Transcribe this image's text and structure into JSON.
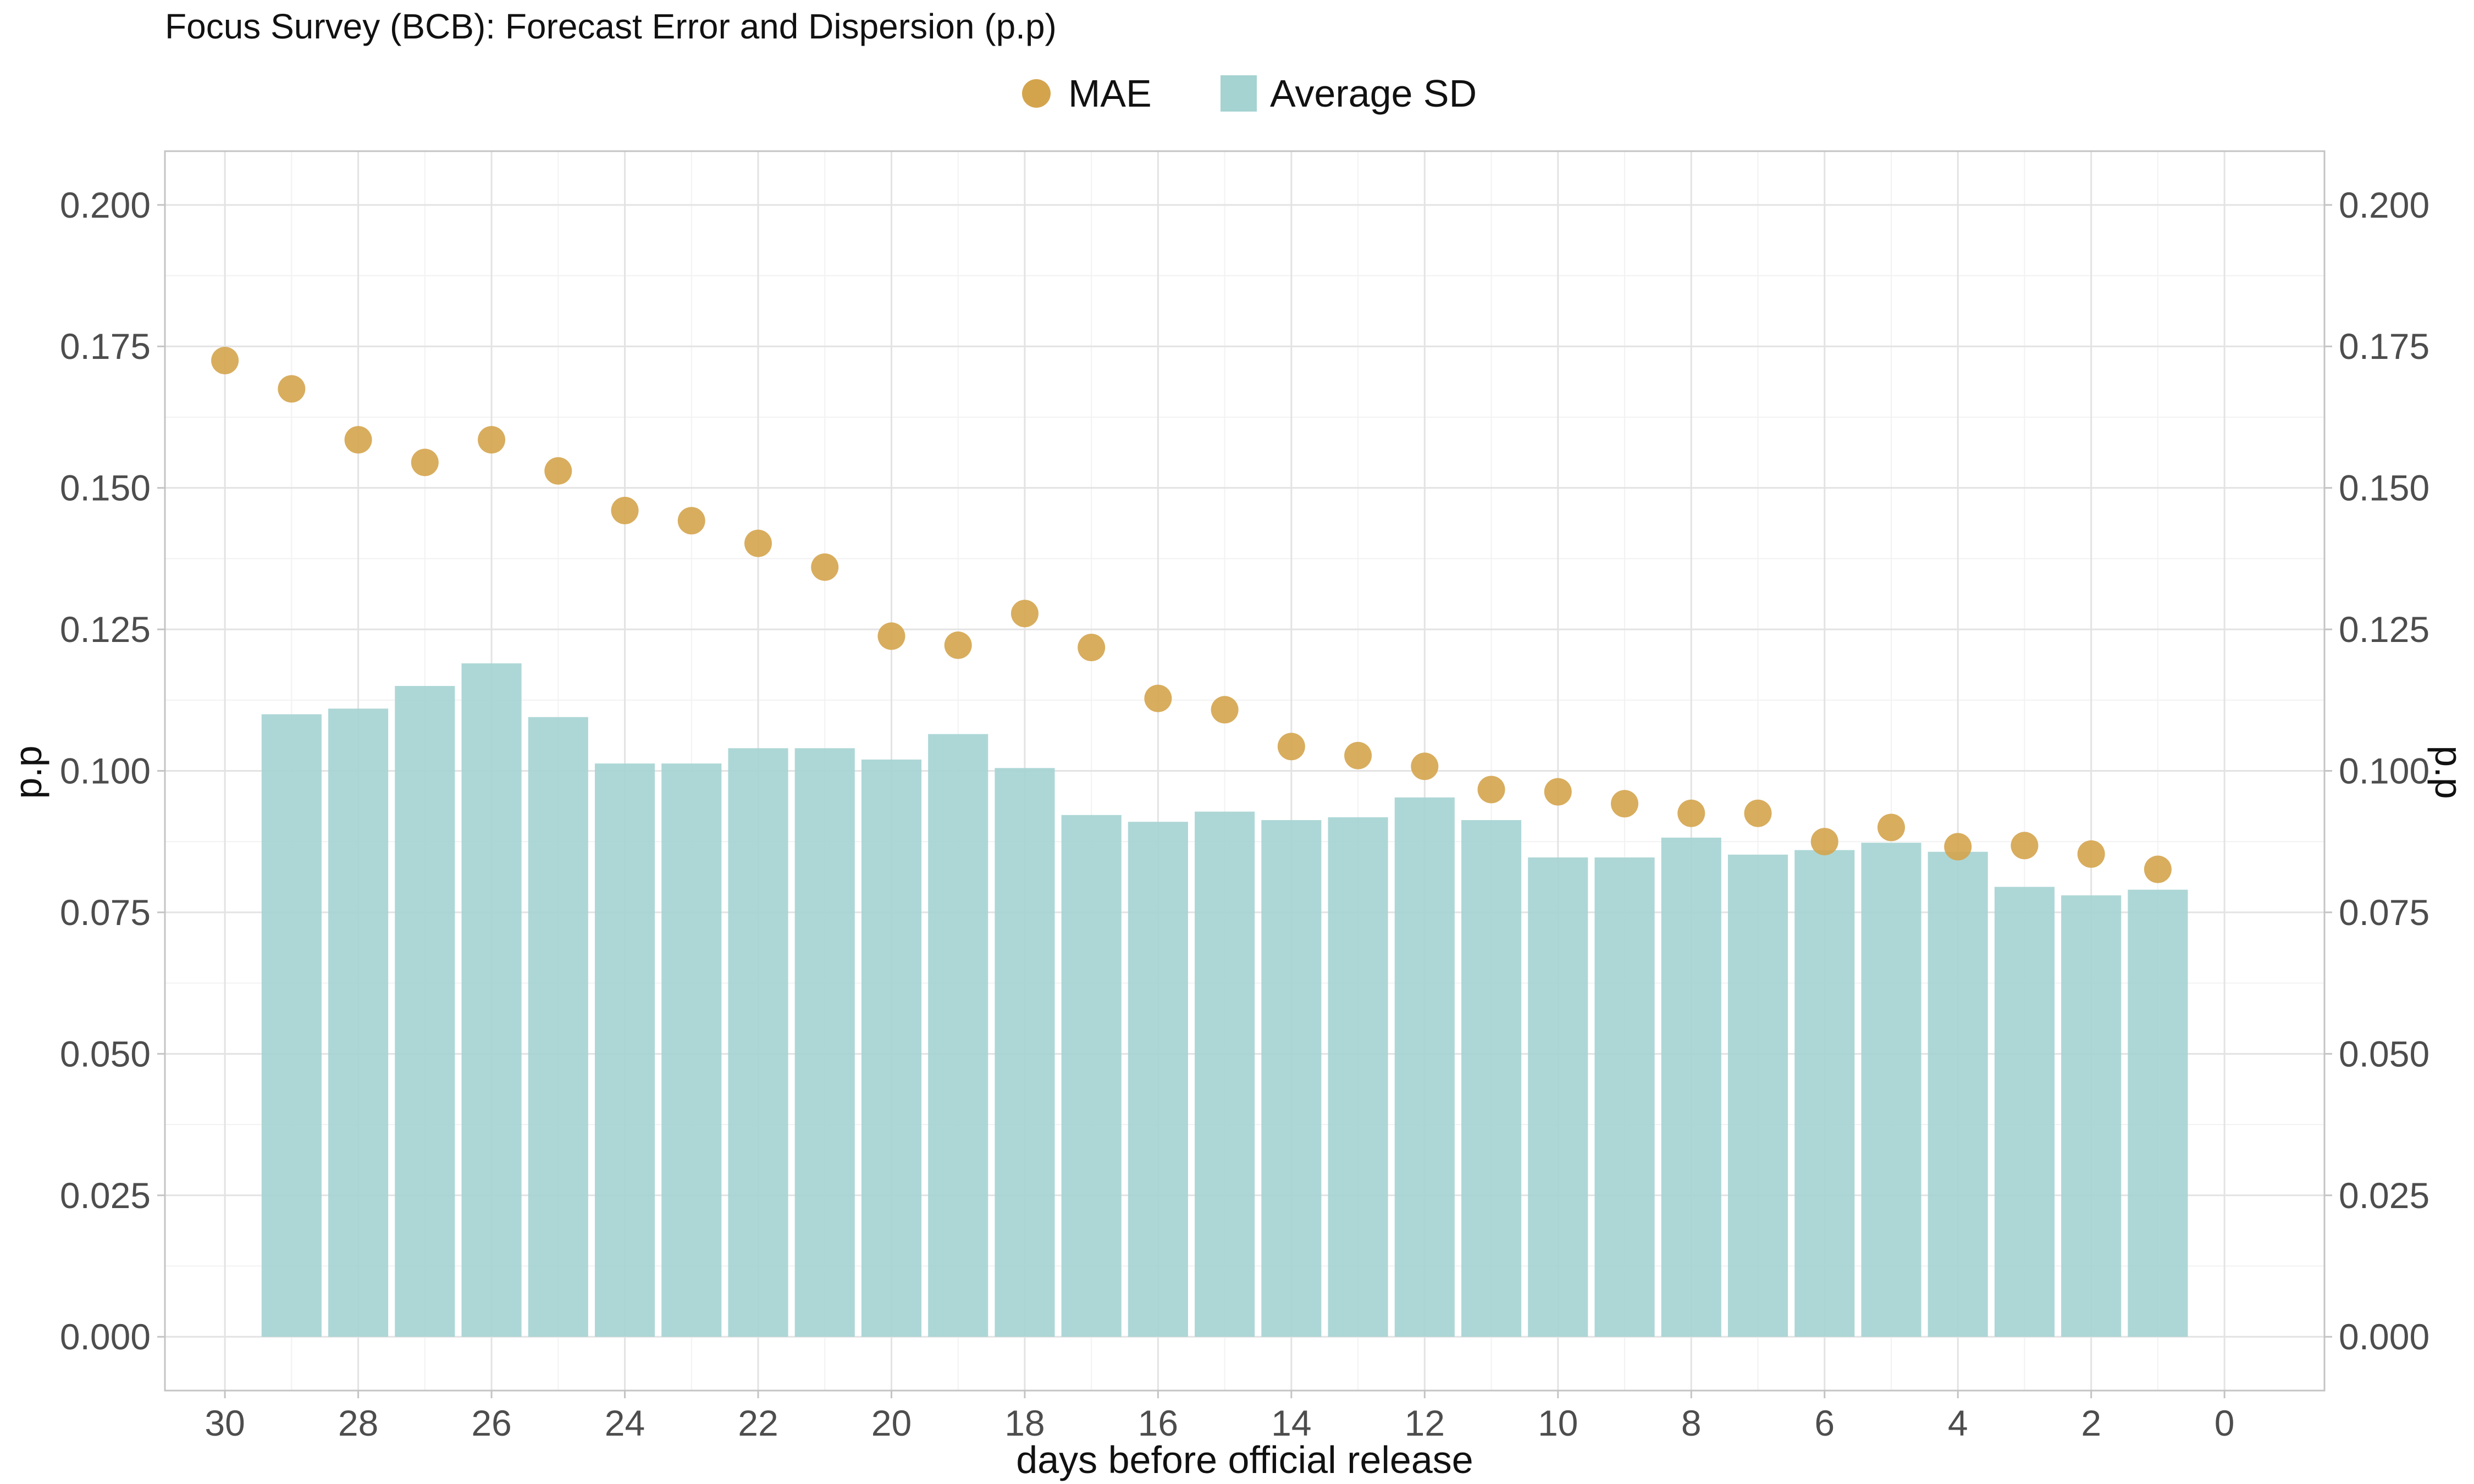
{
  "chart_data": {
    "type": "bar+scatter",
    "title": "Focus Survey (BCB): Forecast Error and Dispersion (p.p)",
    "xlabel": "days before official release",
    "ylabel": "p.p",
    "ylabel_right": "p.p",
    "xlim": [
      30.9,
      -1.5
    ],
    "x_reversed": true,
    "x_ticks": [
      "30",
      "28",
      "26",
      "24",
      "22",
      "20",
      "18",
      "16",
      "14",
      "12",
      "10",
      "8",
      "6",
      "4",
      "2",
      "0"
    ],
    "ylim": [
      -0.0095,
      0.2095
    ],
    "y_ticks": [
      "0.000",
      "0.025",
      "0.050",
      "0.075",
      "0.100",
      "0.125",
      "0.150",
      "0.175",
      "0.200"
    ],
    "grid": true,
    "legend_position": "top",
    "legend": [
      "MAE",
      "Average SD"
    ],
    "series": [
      {
        "name": "MAE",
        "kind": "point",
        "color": "#d4a44d",
        "x": [
          30,
          29,
          28,
          27,
          26,
          25,
          24,
          23,
          22,
          21,
          20,
          19,
          18,
          17,
          16,
          15,
          14,
          13,
          12,
          11,
          10,
          9,
          8,
          7,
          6,
          5,
          4,
          3,
          2,
          1
        ],
        "values": [
          0.1725,
          0.1675,
          0.1585,
          0.1545,
          0.1585,
          0.153,
          0.146,
          0.1442,
          0.1402,
          0.136,
          0.1238,
          0.1222,
          0.1278,
          0.1218,
          0.1128,
          0.1108,
          0.1043,
          0.1027,
          0.1008,
          0.0967,
          0.0963,
          0.0942,
          0.0925,
          0.0925,
          0.0875,
          0.09,
          0.0866,
          0.0868,
          0.0853,
          0.0826
        ]
      },
      {
        "name": "Average SD",
        "kind": "bar",
        "color": "#a4d3d1",
        "x": [
          29,
          28,
          27,
          26,
          25,
          24,
          23,
          22,
          21,
          20,
          19,
          18,
          17,
          16,
          15,
          14,
          13,
          12,
          11,
          10,
          9,
          8,
          7,
          6,
          5,
          4,
          3,
          2,
          1
        ],
        "values": [
          0.11,
          0.111,
          0.115,
          0.119,
          0.1095,
          0.1013,
          0.1013,
          0.104,
          0.104,
          0.102,
          0.1065,
          0.1005,
          0.0922,
          0.091,
          0.0928,
          0.0913,
          0.0918,
          0.0953,
          0.0913,
          0.0847,
          0.0847,
          0.0882,
          0.0852,
          0.086,
          0.0873,
          0.0857,
          0.0795,
          0.078,
          0.079
        ]
      }
    ]
  }
}
